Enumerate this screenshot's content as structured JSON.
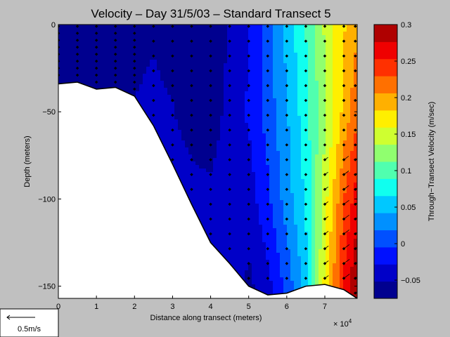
{
  "chart_data": {
    "type": "heatmap",
    "title": "Velocity – Day 31/5/03 – Standard Transect 5",
    "xlabel": "Distance along transect (meters)",
    "ylabel": "Depth (meters)",
    "x_multiplier_label": "× 10",
    "x_multiplier_exp": "4",
    "xlim": [
      0,
      78500
    ],
    "ylim": [
      -157,
      0
    ],
    "x_ticks": [
      {
        "value": 0,
        "label": "0"
      },
      {
        "value": 10000,
        "label": "1"
      },
      {
        "value": 20000,
        "label": "2"
      },
      {
        "value": 30000,
        "label": "3"
      },
      {
        "value": 40000,
        "label": "4"
      },
      {
        "value": 50000,
        "label": "5"
      },
      {
        "value": 60000,
        "label": "6"
      },
      {
        "value": 70000,
        "label": "7"
      }
    ],
    "y_ticks": [
      {
        "value": 0,
        "label": "0"
      },
      {
        "value": -50,
        "label": "−50"
      },
      {
        "value": -100,
        "label": "−100"
      },
      {
        "value": -150,
        "label": "−150"
      }
    ],
    "bathymetry": [
      [
        0,
        -34
      ],
      [
        5000,
        -33
      ],
      [
        10000,
        -37
      ],
      [
        15000,
        -36
      ],
      [
        20000,
        -41
      ],
      [
        25000,
        -58
      ],
      [
        30000,
        -80
      ],
      [
        35000,
        -103
      ],
      [
        40000,
        -125
      ],
      [
        45000,
        -137
      ],
      [
        50000,
        -150
      ],
      [
        55000,
        -155
      ],
      [
        60000,
        -154
      ],
      [
        65000,
        -150
      ],
      [
        70000,
        -149
      ],
      [
        75000,
        -152
      ],
      [
        78500,
        -157
      ]
    ],
    "profile_x": [
      0,
      5000,
      10000,
      15000,
      20000,
      25000,
      30000,
      35000,
      40000,
      45000,
      50000,
      55000,
      60000,
      65000,
      70000,
      75000,
      78000
    ],
    "colorbar": {
      "label": "Through−Transect Velocity (m/sec)",
      "range": [
        -0.075,
        0.3
      ],
      "ticks": [
        {
          "value": 0.3,
          "label": "0.3"
        },
        {
          "value": 0.25,
          "label": "0.25"
        },
        {
          "value": 0.2,
          "label": "0.2"
        },
        {
          "value": 0.15,
          "label": "0.15"
        },
        {
          "value": 0.1,
          "label": "0.1"
        },
        {
          "value": 0.05,
          "label": "0.05"
        },
        {
          "value": 0,
          "label": "0"
        },
        {
          "value": -0.05,
          "label": "−0.05"
        }
      ],
      "colors": [
        "#00008f",
        "#0000c8",
        "#0010ff",
        "#0050ff",
        "#0090ff",
        "#00c8ff",
        "#10ffef",
        "#50ffaf",
        "#90ff6f",
        "#cfff30",
        "#ffef00",
        "#ffb000",
        "#ff7000",
        "#ff3000",
        "#ef0000",
        "#af0000"
      ]
    },
    "velocity_columns": [
      [
        -0.07,
        -0.06,
        -0.06,
        -0.06
      ],
      [
        -0.07,
        -0.06,
        -0.05,
        -0.05
      ],
      [
        -0.07,
        -0.06,
        -0.05,
        -0.05
      ],
      [
        -0.065,
        -0.055,
        -0.045,
        -0.04
      ],
      [
        -0.06,
        -0.05,
        -0.04,
        -0.035
      ],
      [
        -0.055,
        -0.045,
        -0.035,
        -0.03
      ],
      [
        -0.065,
        -0.05,
        -0.035,
        -0.03
      ],
      [
        -0.075,
        -0.065,
        -0.04,
        -0.03
      ],
      [
        -0.075,
        -0.07,
        -0.045,
        -0.02
      ],
      [
        -0.05,
        -0.04,
        -0.03,
        -0.03
      ],
      [
        -0.03,
        -0.025,
        -0.04,
        -0.06
      ],
      [
        0.01,
        0.005,
        -0.01,
        -0.04
      ],
      [
        0.05,
        0.04,
        0.03,
        0.0
      ],
      [
        0.09,
        0.08,
        0.07,
        0.05
      ],
      [
        0.14,
        0.13,
        0.15,
        0.17
      ],
      [
        0.18,
        0.19,
        0.23,
        0.26
      ],
      [
        0.2,
        0.22,
        0.26,
        0.3
      ]
    ],
    "scale_arrow_label": "0.5m/s"
  }
}
